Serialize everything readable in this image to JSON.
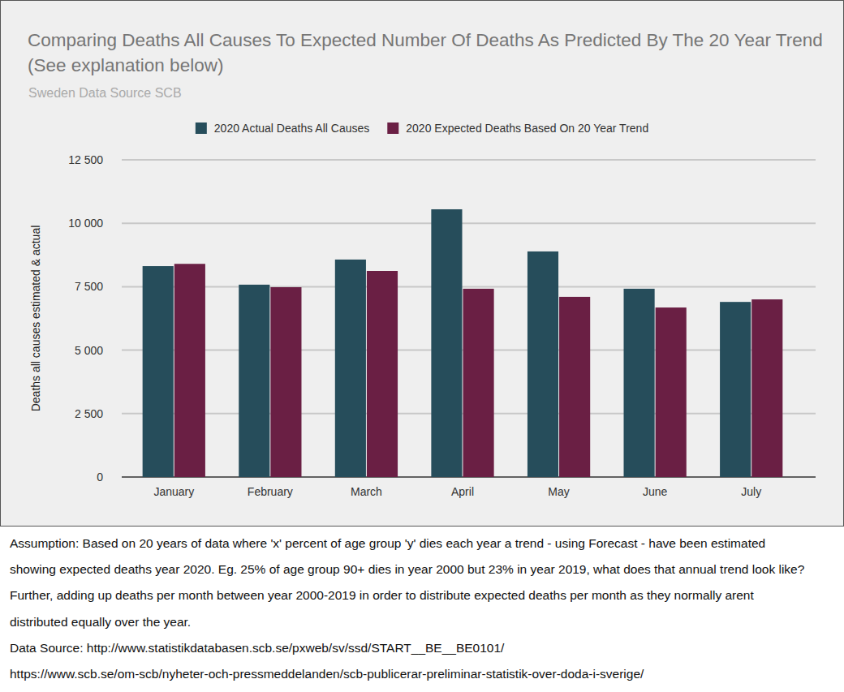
{
  "chart_data": {
    "type": "bar",
    "title": "Comparing Deaths All Causes To Expected Number Of Deaths As Predicted By The 20 Year Trend (See explanation below)",
    "subtitle": "Sweden Data Source SCB",
    "y_label": "Deaths all causes estimated & actual",
    "categories": [
      "January",
      "February",
      "March",
      "April",
      "May",
      "June",
      "July"
    ],
    "series": [
      {
        "name": "2020 Actual Deaths All Causes",
        "color": "#264d5b",
        "values": [
          8310,
          7580,
          8570,
          10550,
          8890,
          7420,
          6900
        ]
      },
      {
        "name": "2020 Expected Deaths Based On 20 Year Trend",
        "color": "#6a1f44",
        "values": [
          8400,
          7480,
          8120,
          7420,
          7100,
          6680,
          7000
        ]
      }
    ],
    "ylim": [
      0,
      12500
    ],
    "yticks": [
      0,
      {
        "value": 2500,
        "label": "2 500"
      },
      {
        "value": 5000,
        "label": "5 000"
      },
      {
        "value": 7500,
        "label": "7 500"
      },
      {
        "value": 10000,
        "label": "10 000"
      },
      {
        "value": 12500,
        "label": "12 500"
      }
    ],
    "grid": true,
    "legend": "top"
  },
  "notes": [
    "Assumption: Based on 20 years of data where 'x' percent of age group 'y' dies each year a trend - using Forecast - have been estimated",
    "showing expected deaths year 2020. Eg. 25% of age group 90+ dies in year 2000 but 23% in year 2019, what does that annual trend look like?",
    "Further, adding up deaths per month between year 2000-2019 in order to distribute expected deaths per month as they normally arent",
    "distributed equally over the year.",
    "Data Source: http://www.statistikdatabasen.scb.se/pxweb/sv/ssd/START__BE__BE0101/",
    "https://www.scb.se/om-scb/nyheter-och-pressmeddelanden/scb-publicerar-preliminar-statistik-over-doda-i-sverige/"
  ]
}
